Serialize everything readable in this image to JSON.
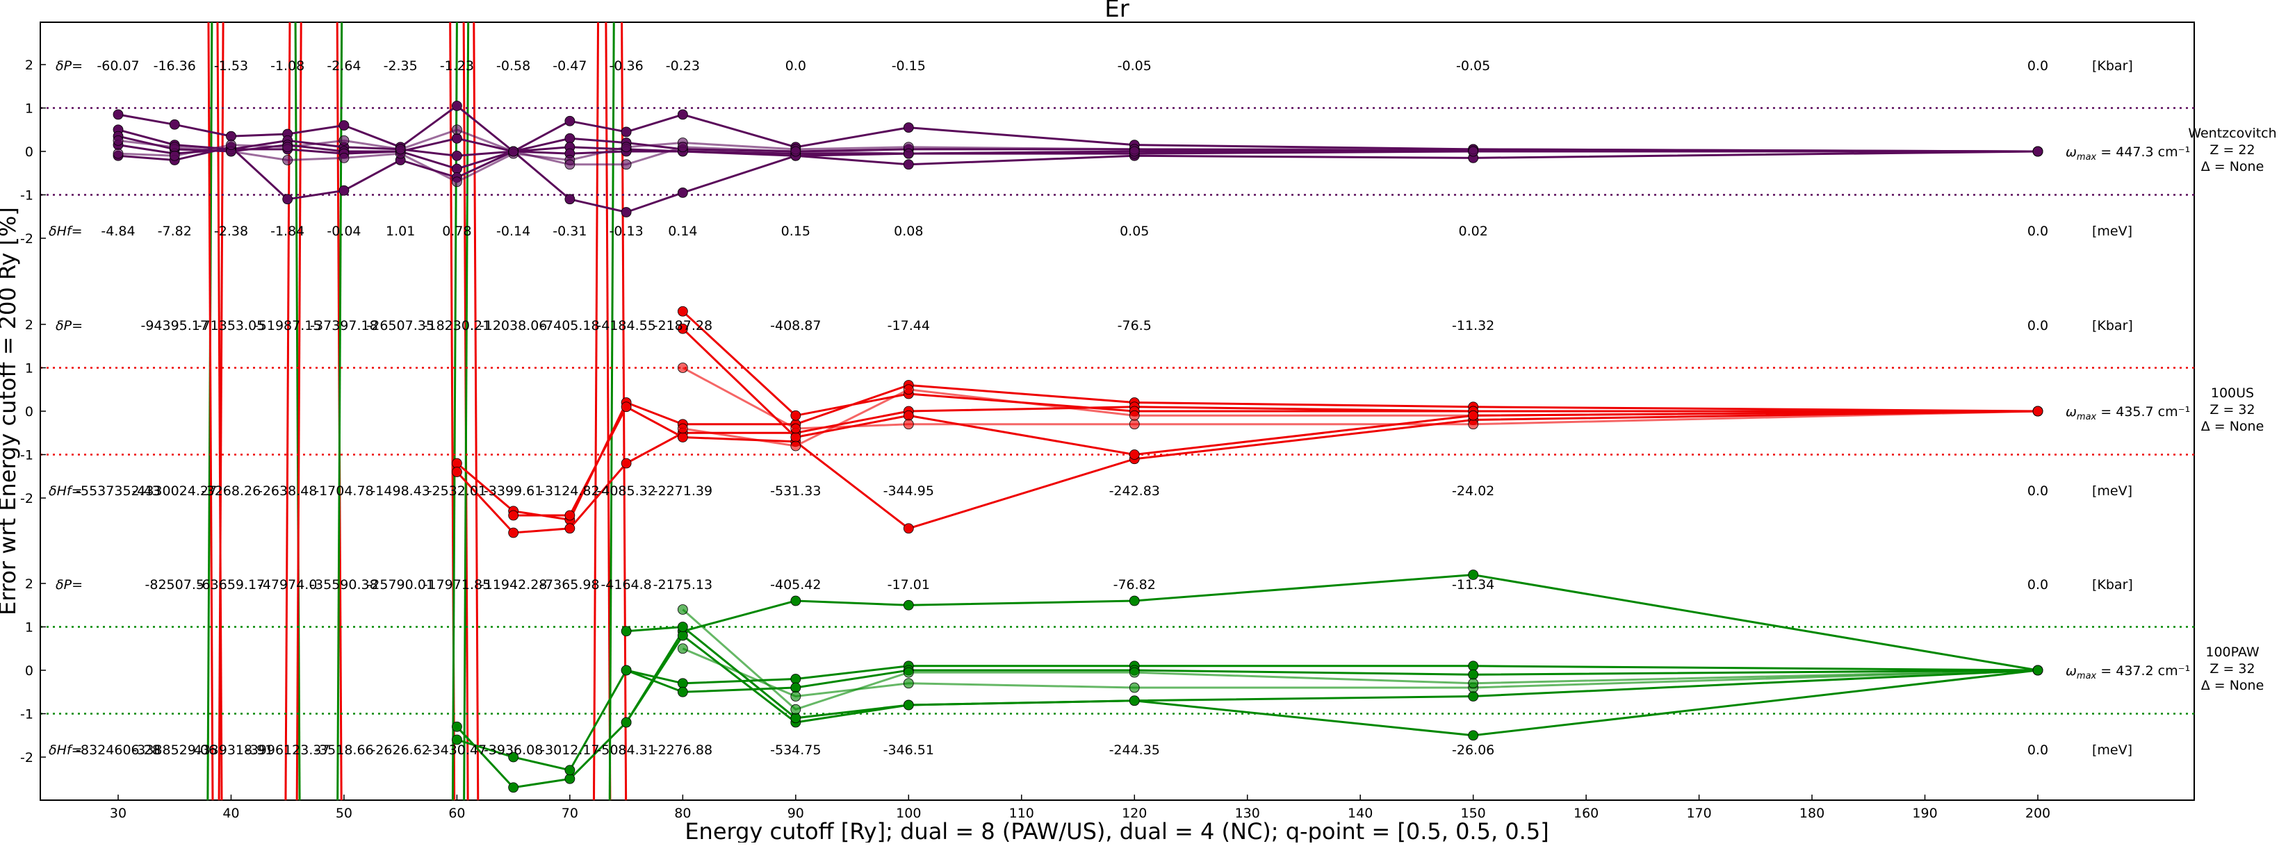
{
  "chart_data": {
    "type": "line",
    "title": "Er",
    "xlabel": "Energy cutoff [Ry]; dual = 8 (PAW/US), dual = 4 (NC); q-point = [0.5, 0.5, 0.5]",
    "ylabel": "Error wrt Energy cutoff = 200 Ry [%]",
    "xlim": [
      23,
      212
    ],
    "x_ticks": [
      30,
      40,
      50,
      60,
      70,
      80,
      90,
      100,
      110,
      120,
      130,
      140,
      150,
      160,
      170,
      180,
      190,
      200
    ],
    "y_tick_labels": [
      "2",
      "1",
      "0",
      "-1",
      "-2"
    ],
    "grid": false,
    "panels": [
      {
        "name": "Wentzcovitch",
        "side_label": [
          "Wentzcovitch",
          "Z = 22",
          "Δ = None"
        ],
        "omega": "ω",
        "omega_sub": "max",
        "omega_text": "= 447.3 cm⁻¹",
        "color": "#5a0a5a",
        "ylim": [
          -3,
          3
        ],
        "y_ticks": [
          2,
          1,
          0,
          -1,
          -2
        ],
        "dP_label": "δP=",
        "dP_values": [
          "-60.07",
          "-16.36",
          "-1.53",
          "-1.08",
          "-2.64",
          "-2.35",
          "-1.23",
          "-0.58",
          "-0.47",
          "-0.36",
          "-0.23",
          "0.0",
          "-0.15",
          "-0.05",
          "-0.05",
          "0.0"
        ],
        "dP_unit": "[Kbar]",
        "dH_label": "δHf=",
        "dH_values": [
          "-4.84",
          "-7.82",
          "-2.38",
          "-1.84",
          "-0.04",
          "1.01",
          "0.78",
          "-0.14",
          "-0.31",
          "-0.13",
          "0.14",
          "0.15",
          "0.08",
          "0.05",
          "0.02",
          "0.0"
        ],
        "dH_unit": "[meV]",
        "x": [
          30,
          35,
          40,
          45,
          50,
          55,
          60,
          65,
          70,
          75,
          80,
          90,
          100,
          120,
          150,
          200
        ],
        "series": [
          {
            "values": [
              0.85,
              0.62,
              0.35,
              0.4,
              0.6,
              0.1,
              1.05,
              0.0,
              0.7,
              0.45,
              0.85,
              0.1,
              0.55,
              0.15,
              0.05,
              0.0
            ],
            "opacity": 1.0,
            "stroke": 3
          },
          {
            "values": [
              0.5,
              0.15,
              0.05,
              0.25,
              0.1,
              0.05,
              -0.1,
              0.0,
              0.3,
              0.2,
              0.05,
              0.0,
              0.05,
              0.05,
              0.02,
              0.0
            ],
            "opacity": 1.0,
            "stroke": 3
          },
          {
            "values": [
              0.35,
              0.05,
              0.0,
              0.15,
              0.0,
              0.0,
              0.3,
              0.0,
              0.1,
              0.05,
              0.0,
              -0.05,
              -0.05,
              0.0,
              0.0,
              0.0
            ],
            "opacity": 1.0,
            "stroke": 3
          },
          {
            "values": [
              0.15,
              -0.05,
              0.05,
              0.05,
              -0.05,
              0.0,
              -0.4,
              0.0,
              -0.05,
              0.0,
              0.0,
              -0.1,
              -0.3,
              -0.1,
              -0.15,
              0.0
            ],
            "opacity": 1.0,
            "stroke": 3
          },
          {
            "values": [
              -0.1,
              -0.2,
              0.1,
              -1.1,
              -0.9,
              -0.2,
              -0.6,
              0.0,
              -1.1,
              -1.4,
              -0.95,
              -0.1,
              -0.05,
              -0.05,
              0.0,
              0.0
            ],
            "opacity": 1.0,
            "stroke": 3
          },
          {
            "values": [
              0.25,
              0.1,
              0.0,
              -0.2,
              -0.15,
              -0.05,
              -0.7,
              -0.05,
              -0.2,
              0.1,
              0.2,
              0.05,
              0.1,
              0.05,
              0.05,
              0.0
            ],
            "opacity": 0.6,
            "stroke": 3
          },
          {
            "values": [
              -0.05,
              -0.1,
              0.15,
              0.1,
              0.25,
              0.05,
              0.5,
              0.0,
              -0.3,
              -0.3,
              0.1,
              0.0,
              -0.05,
              0.0,
              0.0,
              0.0
            ],
            "opacity": 0.6,
            "stroke": 3
          }
        ]
      },
      {
        "name": "100US",
        "side_label": [
          "100US",
          "Z = 32",
          "Δ = None"
        ],
        "omega": "ω",
        "omega_sub": "max",
        "omega_text": "= 435.7 cm⁻¹",
        "color": "#ee0000",
        "ylim": [
          -3,
          3
        ],
        "y_ticks": [
          2,
          1,
          0,
          -1,
          -2
        ],
        "dP_label": "δP=",
        "dP_values": [
          "",
          "-94395.17",
          "-71353.05",
          "-51987.15",
          "-37397.18",
          "-26507.35",
          "-18230.21",
          "-12038.06",
          "-7405.18",
          "-4184.55",
          "-2187.28",
          "-408.87",
          "-17.44",
          "-76.5",
          "-11.32",
          "0.0"
        ],
        "dP_unit": "[Kbar]",
        "dH_label": "δHf=",
        "dH_values": [
          "-5537352.43",
          "-4330024.27",
          "-3268.26",
          "-2638.48",
          "-1704.78",
          "-1498.43",
          "-2532.01",
          "-3399.61",
          "-3124.82",
          "-4085.32",
          "-2271.39",
          "-531.33",
          "-344.95",
          "-242.83",
          "-24.02",
          "0.0"
        ],
        "dH_unit": "[meV]",
        "x": [
          30,
          35,
          40,
          45,
          50,
          55,
          60,
          65,
          70,
          75,
          80,
          90,
          100,
          120,
          150,
          200
        ],
        "series": [
          {
            "values": [
              null,
              null,
              null,
              null,
              null,
              null,
              -1.2,
              -2.3,
              -2.5,
              0.2,
              -0.3,
              -0.3,
              0.6,
              0.2,
              0.1,
              0.0
            ],
            "opacity": 1.0,
            "stroke": 3
          },
          {
            "values": [
              null,
              null,
              null,
              null,
              null,
              null,
              -1.4,
              -2.8,
              -2.7,
              -1.2,
              -0.5,
              -0.5,
              0.0,
              0.1,
              0.0,
              0.0
            ],
            "opacity": 1.0,
            "stroke": 3
          },
          {
            "values": [
              null,
              null,
              null,
              null,
              null,
              null,
              null,
              -2.4,
              -2.4,
              0.1,
              -0.6,
              -0.7,
              -2.7,
              -1.1,
              -0.2,
              0.0
            ],
            "opacity": 1.0,
            "stroke": 3
          },
          {
            "values": [
              null,
              null,
              null,
              null,
              null,
              null,
              null,
              null,
              null,
              null,
              2.3,
              -0.1,
              0.4,
              0.0,
              0.0,
              0.0
            ],
            "opacity": 1.0,
            "stroke": 3
          },
          {
            "values": [
              null,
              null,
              null,
              null,
              null,
              null,
              null,
              null,
              null,
              null,
              1.9,
              -0.6,
              -0.1,
              -1.0,
              -0.1,
              0.0
            ],
            "opacity": 1.0,
            "stroke": 3
          },
          {
            "values": [
              null,
              null,
              null,
              null,
              null,
              null,
              null,
              null,
              null,
              null,
              1.0,
              -0.4,
              -0.3,
              -0.3,
              -0.3,
              0.0
            ],
            "opacity": 0.6,
            "stroke": 3
          },
          {
            "values": [
              null,
              null,
              null,
              null,
              null,
              null,
              null,
              null,
              null,
              null,
              -0.4,
              -0.8,
              0.5,
              -0.1,
              -0.1,
              0.0
            ],
            "opacity": 0.6,
            "stroke": 3
          }
        ]
      },
      {
        "name": "100PAW",
        "side_label": [
          "100PAW",
          "Z = 32",
          "Δ = None"
        ],
        "omega": "ω",
        "omega_sub": "max",
        "omega_text": "= 437.2 cm⁻¹",
        "color": "#008800",
        "ylim": [
          -3,
          3
        ],
        "y_ticks": [
          2,
          1,
          0,
          -1,
          -2
        ],
        "dP_label": "δP=",
        "dP_values": [
          "",
          "-82507.5",
          "-63659.17",
          "-47974.0",
          "-35590.38",
          "-25790.01",
          "-17971.85",
          "-11942.28",
          "-7365.98",
          "-4164.8",
          "-2175.13",
          "-405.42",
          "-17.01",
          "-76.82",
          "-11.34",
          "0.0"
        ],
        "dP_unit": "[Kbar]",
        "dH_label": "δHf=",
        "dH_values": [
          "-8324606.28",
          "-3388529.06",
          "-4339318.91",
          "-3996123.37",
          "-3518.66",
          "-2626.62",
          "-3430.47",
          "-3936.08",
          "-3012.17",
          "-5084.31",
          "-2276.88",
          "-534.75",
          "-346.51",
          "-244.35",
          "-26.06",
          "0.0"
        ],
        "dH_unit": "[meV]",
        "x": [
          30,
          35,
          40,
          45,
          50,
          55,
          60,
          65,
          70,
          75,
          80,
          90,
          100,
          120,
          150,
          200
        ],
        "series": [
          {
            "values": [
              null,
              null,
              null,
              null,
              null,
              null,
              -1.3,
              -2.7,
              -2.5,
              -1.2,
              0.9,
              1.6,
              1.5,
              1.6,
              2.2,
              0.0
            ],
            "opacity": 1.0,
            "stroke": 3
          },
          {
            "values": [
              null,
              null,
              null,
              null,
              null,
              null,
              -1.6,
              -2.0,
              -2.3,
              0.0,
              -0.3,
              -0.2,
              0.1,
              0.1,
              0.1,
              0.0
            ],
            "opacity": 1.0,
            "stroke": 3
          },
          {
            "values": [
              null,
              null,
              null,
              null,
              null,
              null,
              null,
              null,
              null,
              0.0,
              -0.5,
              -0.4,
              0.0,
              0.0,
              -0.1,
              0.0
            ],
            "opacity": 1.0,
            "stroke": 3
          },
          {
            "values": [
              null,
              null,
              null,
              null,
              null,
              null,
              null,
              null,
              null,
              -1.2,
              0.8,
              -1.2,
              -0.8,
              -0.7,
              -1.5,
              0.0
            ],
            "opacity": 1.0,
            "stroke": 3
          },
          {
            "values": [
              null,
              null,
              null,
              null,
              null,
              null,
              null,
              null,
              null,
              0.9,
              1.0,
              -1.1,
              -0.8,
              -0.7,
              -0.6,
              0.0
            ],
            "opacity": 1.0,
            "stroke": 3
          },
          {
            "values": [
              null,
              null,
              null,
              null,
              null,
              null,
              null,
              null,
              null,
              null,
              0.5,
              -0.6,
              -0.3,
              -0.4,
              -0.4,
              0.0
            ],
            "opacity": 0.6,
            "stroke": 3
          },
          {
            "values": [
              null,
              null,
              null,
              null,
              null,
              null,
              null,
              null,
              null,
              null,
              1.4,
              -0.9,
              -0.05,
              -0.05,
              -0.3,
              0.0
            ],
            "opacity": 0.6,
            "stroke": 3
          }
        ]
      }
    ]
  }
}
